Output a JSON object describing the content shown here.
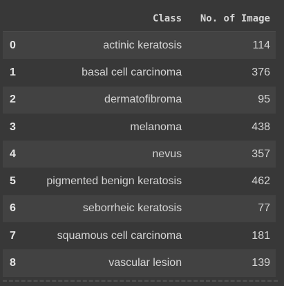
{
  "table": {
    "index_header": "",
    "columns": [
      "Class",
      "No. of Image"
    ],
    "rows": [
      {
        "index": "0",
        "class": "actinic keratosis",
        "count": "114"
      },
      {
        "index": "1",
        "class": "basal cell carcinoma",
        "count": "376"
      },
      {
        "index": "2",
        "class": "dermatofibroma",
        "count": "95"
      },
      {
        "index": "3",
        "class": "melanoma",
        "count": "438"
      },
      {
        "index": "4",
        "class": "nevus",
        "count": "357"
      },
      {
        "index": "5",
        "class": "pigmented benign keratosis",
        "count": "462"
      },
      {
        "index": "6",
        "class": "seborrheic keratosis",
        "count": "77"
      },
      {
        "index": "7",
        "class": "squamous cell carcinoma",
        "count": "181"
      },
      {
        "index": "8",
        "class": "vascular lesion",
        "count": "139"
      }
    ]
  },
  "colors": {
    "background": "#383838",
    "row_stripe": "#424242",
    "text": "#d5d5d5"
  }
}
